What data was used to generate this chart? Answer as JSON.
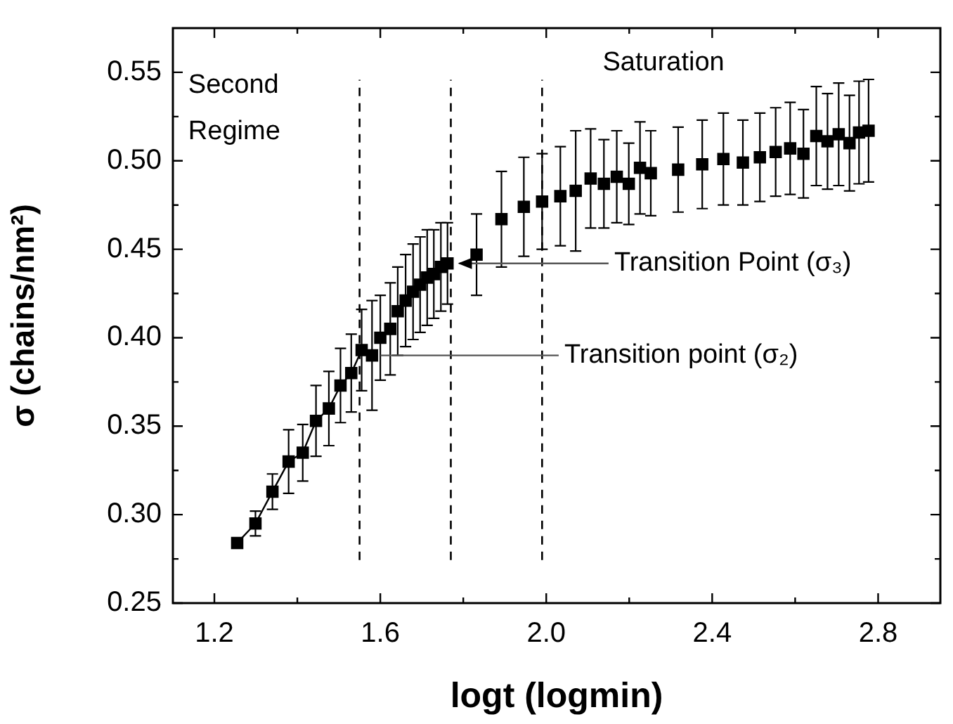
{
  "chart_data": {
    "type": "scatter",
    "xlabel": "logt (logmin)",
    "ylabel": "σ (chains/nm²)",
    "xlim": [
      1.1,
      2.95
    ],
    "ylim": [
      0.25,
      0.575
    ],
    "xticks": [
      1.2,
      {
        "value": 1.4,
        "label": null
      },
      1.6,
      {
        "value": 1.8,
        "label": null
      },
      {
        "value": 2.0,
        "label": "2.0"
      },
      {
        "value": 2.2,
        "label": null
      },
      2.4,
      {
        "value": 2.6,
        "label": null
      },
      2.8
    ],
    "yticks": [
      0.25,
      {
        "value": 0.275,
        "label": null
      },
      {
        "value": 0.3,
        "label": "0.30"
      },
      {
        "value": 0.325,
        "label": null
      },
      0.35,
      {
        "value": 0.375,
        "label": null
      },
      {
        "value": 0.4,
        "label": "0.40"
      },
      {
        "value": 0.425,
        "label": null
      },
      0.45,
      {
        "value": 0.475,
        "label": null
      },
      {
        "value": 0.5,
        "label": "0.50"
      },
      {
        "value": 0.525,
        "label": null
      },
      0.55
    ],
    "grid": false,
    "legend": false,
    "marker": "square",
    "series": [
      {
        "color": "#000000",
        "x": [
          1.255,
          1.299,
          1.34,
          1.379,
          1.413,
          1.445,
          1.476,
          1.504,
          1.53,
          1.555,
          1.58,
          1.6,
          1.624,
          1.642,
          1.661,
          1.679,
          1.696,
          1.713,
          1.729,
          1.746,
          1.762,
          1.832,
          1.892,
          1.946,
          1.99,
          2.034,
          2.071,
          2.107,
          2.139,
          2.17,
          2.199,
          2.226,
          2.252,
          2.318,
          2.376,
          2.427,
          2.474,
          2.515,
          2.553,
          2.588,
          2.62,
          2.651,
          2.678,
          2.705,
          2.731,
          2.754,
          2.777
        ],
        "values": [
          0.284,
          0.295,
          0.313,
          0.33,
          0.335,
          0.353,
          0.36,
          0.373,
          0.38,
          0.393,
          0.39,
          0.4,
          0.405,
          0.415,
          0.421,
          0.426,
          0.43,
          0.434,
          0.436,
          0.44,
          0.442,
          0.447,
          0.467,
          0.474,
          0.477,
          0.48,
          0.483,
          0.49,
          0.487,
          0.491,
          0.487,
          0.496,
          0.493,
          0.495,
          0.498,
          0.501,
          0.499,
          0.502,
          0.505,
          0.507,
          0.504,
          0.514,
          0.511,
          0.515,
          0.51,
          0.516,
          0.517
        ],
        "errors": [
          null,
          0.007,
          0.01,
          0.018,
          0.016,
          0.02,
          0.021,
          0.021,
          0.022,
          0.023,
          0.031,
          0.024,
          0.026,
          0.025,
          0.026,
          0.027,
          0.027,
          0.027,
          0.025,
          0.025,
          0.023,
          0.023,
          0.027,
          0.028,
          0.027,
          0.028,
          0.034,
          0.028,
          0.025,
          0.026,
          0.023,
          0.026,
          0.024,
          0.024,
          0.025,
          0.026,
          0.024,
          0.025,
          0.025,
          0.026,
          0.025,
          0.028,
          0.027,
          0.029,
          0.027,
          0.029,
          0.029
        ]
      },
      {
        "type": "line",
        "color": "#000000",
        "marker": "none",
        "x": [
          1.255,
          1.299,
          1.34,
          1.379,
          1.413,
          1.445,
          1.476,
          1.504,
          1.53,
          1.555,
          1.58
        ],
        "values": [
          0.284,
          0.295,
          0.313,
          0.33,
          0.335,
          0.353,
          0.36,
          0.373,
          0.38,
          0.393,
          0.39
        ]
      }
    ],
    "ref_lines": [
      {
        "axis": "x",
        "value": 1.55,
        "color": "#000000",
        "line_style": "dashed"
      },
      {
        "axis": "x",
        "value": 1.77,
        "color": "#000000",
        "line_style": "dashed"
      },
      {
        "axis": "x",
        "value": 1.99,
        "color": "#000000",
        "line_style": "dashed"
      }
    ],
    "annotations": [
      {
        "text": "Transition Point (σ₃)",
        "x": 1.77,
        "y": 0.442
      },
      {
        "text": "Transition point (σ₂)",
        "x": 1.58,
        "y": 0.39
      },
      "Second Regime",
      "Saturation"
    ]
  }
}
